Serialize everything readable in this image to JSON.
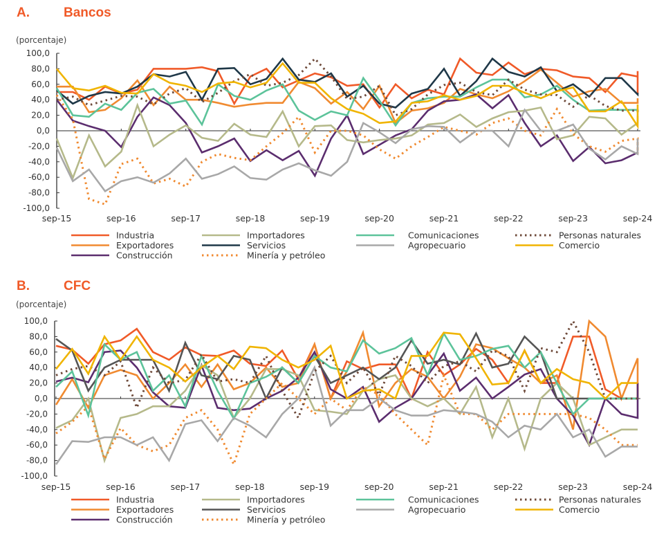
{
  "chart_data": [
    {
      "type": "line",
      "panel_letter": "A.",
      "title": "Bancos",
      "ylabel": "(porcentaje)",
      "xlabel": "",
      "ylim": [
        -100,
        100
      ],
      "yticks": [
        "100,0",
        "80,0",
        "60,0",
        "40,0",
        "20,0",
        "0,0",
        "-20,0",
        "-40,0",
        "-60,0",
        "-80,0",
        "-100,0"
      ],
      "xticks": [
        "sep-15",
        "sep-16",
        "sep-17",
        "sep-18",
        "sep-19",
        "sep-20",
        "sep-21",
        "sep-22",
        "sep-23",
        "sep-24"
      ],
      "x_frequency": "quarterly",
      "grid": false,
      "legend_position": "bottom",
      "series": [
        {
          "name": "Industria",
          "color": "#f05a28",
          "dash": "solid",
          "values": [
            50,
            50,
            40,
            57,
            48,
            53,
            80,
            80,
            80,
            82,
            77,
            35,
            70,
            80,
            56,
            65,
            74,
            69,
            58,
            60,
            30,
            60,
            42,
            53,
            47,
            93,
            75,
            72,
            88,
            73,
            80,
            78,
            70,
            68,
            50,
            74,
            70,
            47,
            77
          ]
        },
        {
          "name": "Exportadores",
          "color": "#f08a30",
          "dash": "solid",
          "values": [
            57,
            57,
            24,
            27,
            42,
            65,
            33,
            57,
            40,
            40,
            36,
            31,
            34,
            36,
            36,
            63,
            55,
            35,
            50,
            28,
            58,
            10,
            26,
            29,
            36,
            54,
            47,
            42,
            51,
            64,
            79,
            62,
            44,
            51,
            54,
            36,
            36,
            42,
            38
          ]
        },
        {
          "name": "Construcción",
          "color": "#5b2d6e",
          "dash": "solid",
          "values": [
            40,
            13,
            6,
            0,
            -21,
            18,
            43,
            33,
            10,
            -28,
            -20,
            -10,
            -39,
            -25,
            -38,
            -26,
            -58,
            -10,
            20,
            -30,
            -18,
            -6,
            2,
            26,
            38,
            40,
            47,
            29,
            46,
            10,
            -20,
            -6,
            -39,
            -21,
            -42,
            -38,
            -28,
            -28,
            -28
          ]
        },
        {
          "name": "Importadores",
          "color": "#b5b98a",
          "dash": "solid",
          "values": [
            -10,
            -61,
            -6,
            -46,
            -27,
            33,
            -20,
            -5,
            7,
            -9,
            -13,
            9,
            -5,
            -8,
            25,
            -20,
            6,
            7,
            -12,
            -15,
            -12,
            -10,
            -6,
            8,
            10,
            21,
            5,
            16,
            24,
            26,
            30,
            -11,
            -6,
            18,
            16,
            -5,
            10,
            19,
            16
          ]
        },
        {
          "name": "Servicios",
          "color": "#1f3848",
          "dash": "solid",
          "values": [
            52,
            35,
            45,
            50,
            48,
            57,
            73,
            70,
            76,
            40,
            80,
            81,
            60,
            67,
            93,
            66,
            63,
            74,
            44,
            58,
            35,
            30,
            48,
            54,
            80,
            45,
            64,
            93,
            76,
            70,
            82,
            51,
            60,
            44,
            68,
            68,
            47,
            49,
            49
          ]
        },
        {
          "name": "Minería y petróleo",
          "color": "#f08a30",
          "dash": "dotted",
          "values": [
            46,
            15,
            -88,
            -95,
            -43,
            -36,
            -68,
            -62,
            -72,
            -40,
            -30,
            -35,
            -38,
            -20,
            -3,
            18,
            -28,
            0,
            0,
            -6,
            -24,
            -36,
            -20,
            -8,
            5,
            0,
            -5,
            10,
            16,
            0,
            -6,
            28,
            -4,
            -20,
            -27,
            -13,
            -10,
            -30,
            -10
          ]
        },
        {
          "name": "Comunicaciones",
          "color": "#5cc39a",
          "dash": "solid",
          "values": [
            55,
            20,
            18,
            35,
            27,
            49,
            54,
            35,
            39,
            8,
            60,
            45,
            40,
            52,
            60,
            26,
            14,
            25,
            20,
            68,
            39,
            7,
            36,
            42,
            44,
            44,
            56,
            66,
            66,
            43,
            47,
            58,
            40,
            26,
            27,
            27,
            27,
            27,
            27
          ]
        },
        {
          "name": "Agropecuario",
          "color": "#a8a8a8",
          "dash": "solid",
          "values": [
            -22,
            -65,
            -50,
            -78,
            -65,
            -60,
            -67,
            -55,
            -36,
            -62,
            -56,
            -46,
            -61,
            -63,
            -50,
            -42,
            -51,
            -58,
            -40,
            10,
            -2,
            -16,
            2,
            6,
            5,
            -15,
            0,
            0,
            -20,
            27,
            0,
            0,
            8,
            -23,
            -37,
            -20,
            -30,
            -10,
            -10
          ]
        },
        {
          "name": "Personas naturales",
          "color": "#6e4a3a",
          "dash": "dotted",
          "values": [
            40,
            44,
            33,
            39,
            45,
            44,
            34,
            48,
            55,
            37,
            49,
            64,
            73,
            58,
            62,
            72,
            93,
            70,
            41,
            44,
            58,
            20,
            28,
            47,
            59,
            62,
            50,
            46,
            66,
            53,
            47,
            46,
            31,
            46,
            32,
            26,
            26,
            25,
            20
          ]
        },
        {
          "name": "Comercio",
          "color": "#f0b400",
          "dash": "solid",
          "values": [
            80,
            55,
            52,
            58,
            49,
            48,
            73,
            62,
            58,
            50,
            61,
            63,
            56,
            62,
            87,
            62,
            62,
            42,
            28,
            22,
            10,
            12,
            36,
            38,
            46,
            40,
            45,
            58,
            58,
            49,
            42,
            51,
            56,
            25,
            25,
            38,
            6,
            22,
            34
          ]
        }
      ]
    },
    {
      "type": "line",
      "panel_letter": "B.",
      "title": "CFC",
      "ylabel": "(porcentaje)",
      "xlabel": "",
      "ylim": [
        -100,
        100
      ],
      "yticks": [
        "100,0",
        "80,0",
        "60,0",
        "40,0",
        "20,0",
        "0,0",
        "-20,0",
        "-40,0",
        "-60,0",
        "-80,0",
        "-100,0"
      ],
      "xticks": [
        "sep-15",
        "sep-16",
        "sep-17",
        "sep-18",
        "sep-19",
        "sep-20",
        "sep-21",
        "sep-22",
        "sep-23",
        "sep-24"
      ],
      "x_frequency": "quarterly",
      "grid": false,
      "legend_position": "bottom",
      "series": [
        {
          "name": "Industria",
          "color": "#f05a28",
          "dash": "solid",
          "values": [
            68,
            63,
            45,
            70,
            75,
            90,
            60,
            50,
            66,
            56,
            55,
            62,
            45,
            42,
            62,
            25,
            70,
            0,
            48,
            38,
            44,
            44,
            0,
            60,
            30,
            44,
            64,
            50,
            20,
            62,
            20,
            20,
            80,
            80,
            12,
            0,
            0,
            0,
            20
          ]
        },
        {
          "name": "Exportadores",
          "color": "#f08a30",
          "dash": "solid",
          "values": [
            -8,
            25,
            -12,
            30,
            37,
            30,
            0,
            20,
            44,
            15,
            44,
            12,
            20,
            40,
            15,
            20,
            70,
            0,
            35,
            85,
            -10,
            20,
            38,
            28,
            0,
            28,
            70,
            65,
            52,
            40,
            20,
            30,
            -40,
            100,
            80,
            0,
            52,
            45,
            0
          ]
        },
        {
          "name": "Construcción",
          "color": "#5b2d6e",
          "dash": "solid",
          "values": [
            22,
            27,
            21,
            60,
            62,
            40,
            8,
            -10,
            -12,
            43,
            -12,
            -15,
            -13,
            0,
            10,
            27,
            60,
            12,
            0,
            15,
            -30,
            -12,
            0,
            30,
            58,
            10,
            27,
            0,
            15,
            31,
            38,
            0,
            -22,
            -60,
            0,
            -20,
            -25,
            20,
            20
          ]
        },
        {
          "name": "Importadores",
          "color": "#b5b98a",
          "dash": "solid",
          "values": [
            -38,
            -28,
            0,
            -80,
            -25,
            -20,
            -10,
            -10,
            10,
            43,
            30,
            -25,
            0,
            38,
            38,
            30,
            -15,
            -17,
            -20,
            10,
            25,
            30,
            0,
            -10,
            0,
            -20,
            15,
            -50,
            0,
            -65,
            0,
            20,
            0,
            -60,
            -50,
            -40,
            -40,
            -40,
            -40
          ]
        },
        {
          "name": "Servicios",
          "color": "#555555",
          "dash": "solid",
          "values": [
            77,
            62,
            10,
            40,
            50,
            50,
            50,
            10,
            72,
            30,
            25,
            55,
            50,
            0,
            40,
            20,
            55,
            20,
            30,
            40,
            25,
            40,
            75,
            45,
            50,
            44,
            84,
            40,
            45,
            80,
            60,
            0,
            0,
            0,
            0,
            0,
            0,
            0,
            0
          ]
        },
        {
          "name": "Minería y petróleo",
          "color": "#f08a30",
          "dash": "dotted",
          "values": [
            -45,
            -30,
            -10,
            -78,
            -38,
            -60,
            -68,
            -60,
            -25,
            -15,
            -40,
            -85,
            -20,
            0,
            20,
            0,
            -20,
            0,
            -15,
            15,
            5,
            -20,
            -40,
            -60,
            30,
            -20,
            -20,
            -40,
            -20,
            -20,
            -20,
            -20,
            -20,
            -25,
            -40,
            -60,
            -60,
            -60,
            -60
          ]
        },
        {
          "name": "Comunicaciones",
          "color": "#5cc39a",
          "dash": "solid",
          "values": [
            15,
            35,
            -22,
            70,
            50,
            60,
            10,
            30,
            -10,
            55,
            10,
            -26,
            20,
            28,
            40,
            20,
            55,
            40,
            35,
            75,
            58,
            65,
            78,
            30,
            84,
            50,
            55,
            64,
            68,
            40,
            60,
            20,
            -20,
            0,
            0,
            0,
            0,
            0,
            0
          ]
        },
        {
          "name": "Agropecuario",
          "color": "#a8a8a8",
          "dash": "solid",
          "values": [
            -85,
            -55,
            -56,
            -50,
            -50,
            -60,
            -50,
            -80,
            -33,
            -28,
            -55,
            -25,
            -35,
            -50,
            -20,
            0,
            40,
            -35,
            -15,
            -15,
            0,
            -15,
            -22,
            -22,
            -15,
            -17,
            -20,
            -30,
            -50,
            -35,
            -40,
            -20,
            -50,
            -40,
            -75,
            -62,
            -62,
            -62,
            -62
          ]
        },
        {
          "name": "Personas naturales",
          "color": "#6e4a3a",
          "dash": "dotted",
          "values": [
            30,
            38,
            42,
            30,
            48,
            -12,
            40,
            20,
            24,
            57,
            22,
            25,
            20,
            55,
            10,
            -25,
            35,
            55,
            20,
            40,
            5,
            55,
            42,
            20,
            42,
            48,
            35,
            62,
            55,
            10,
            65,
            60,
            100,
            60,
            0,
            0,
            0,
            0,
            0
          ]
        },
        {
          "name": "Comercio",
          "color": "#f0b400",
          "dash": "solid",
          "values": [
            38,
            64,
            32,
            80,
            50,
            80,
            50,
            40,
            22,
            40,
            55,
            38,
            67,
            65,
            50,
            40,
            50,
            68,
            0,
            10,
            12,
            0,
            55,
            55,
            85,
            83,
            52,
            18,
            20,
            62,
            20,
            38,
            25,
            20,
            0,
            20,
            20,
            20,
            20
          ]
        }
      ]
    }
  ],
  "legend_layout": [
    [
      "Industria",
      "Importadores",
      "Comunicaciones",
      "Personas naturales"
    ],
    [
      "Exportadores",
      "Servicios",
      "Agropecuario",
      "Comercio"
    ],
    [
      "Construcción",
      "Minería y petróleo"
    ]
  ]
}
